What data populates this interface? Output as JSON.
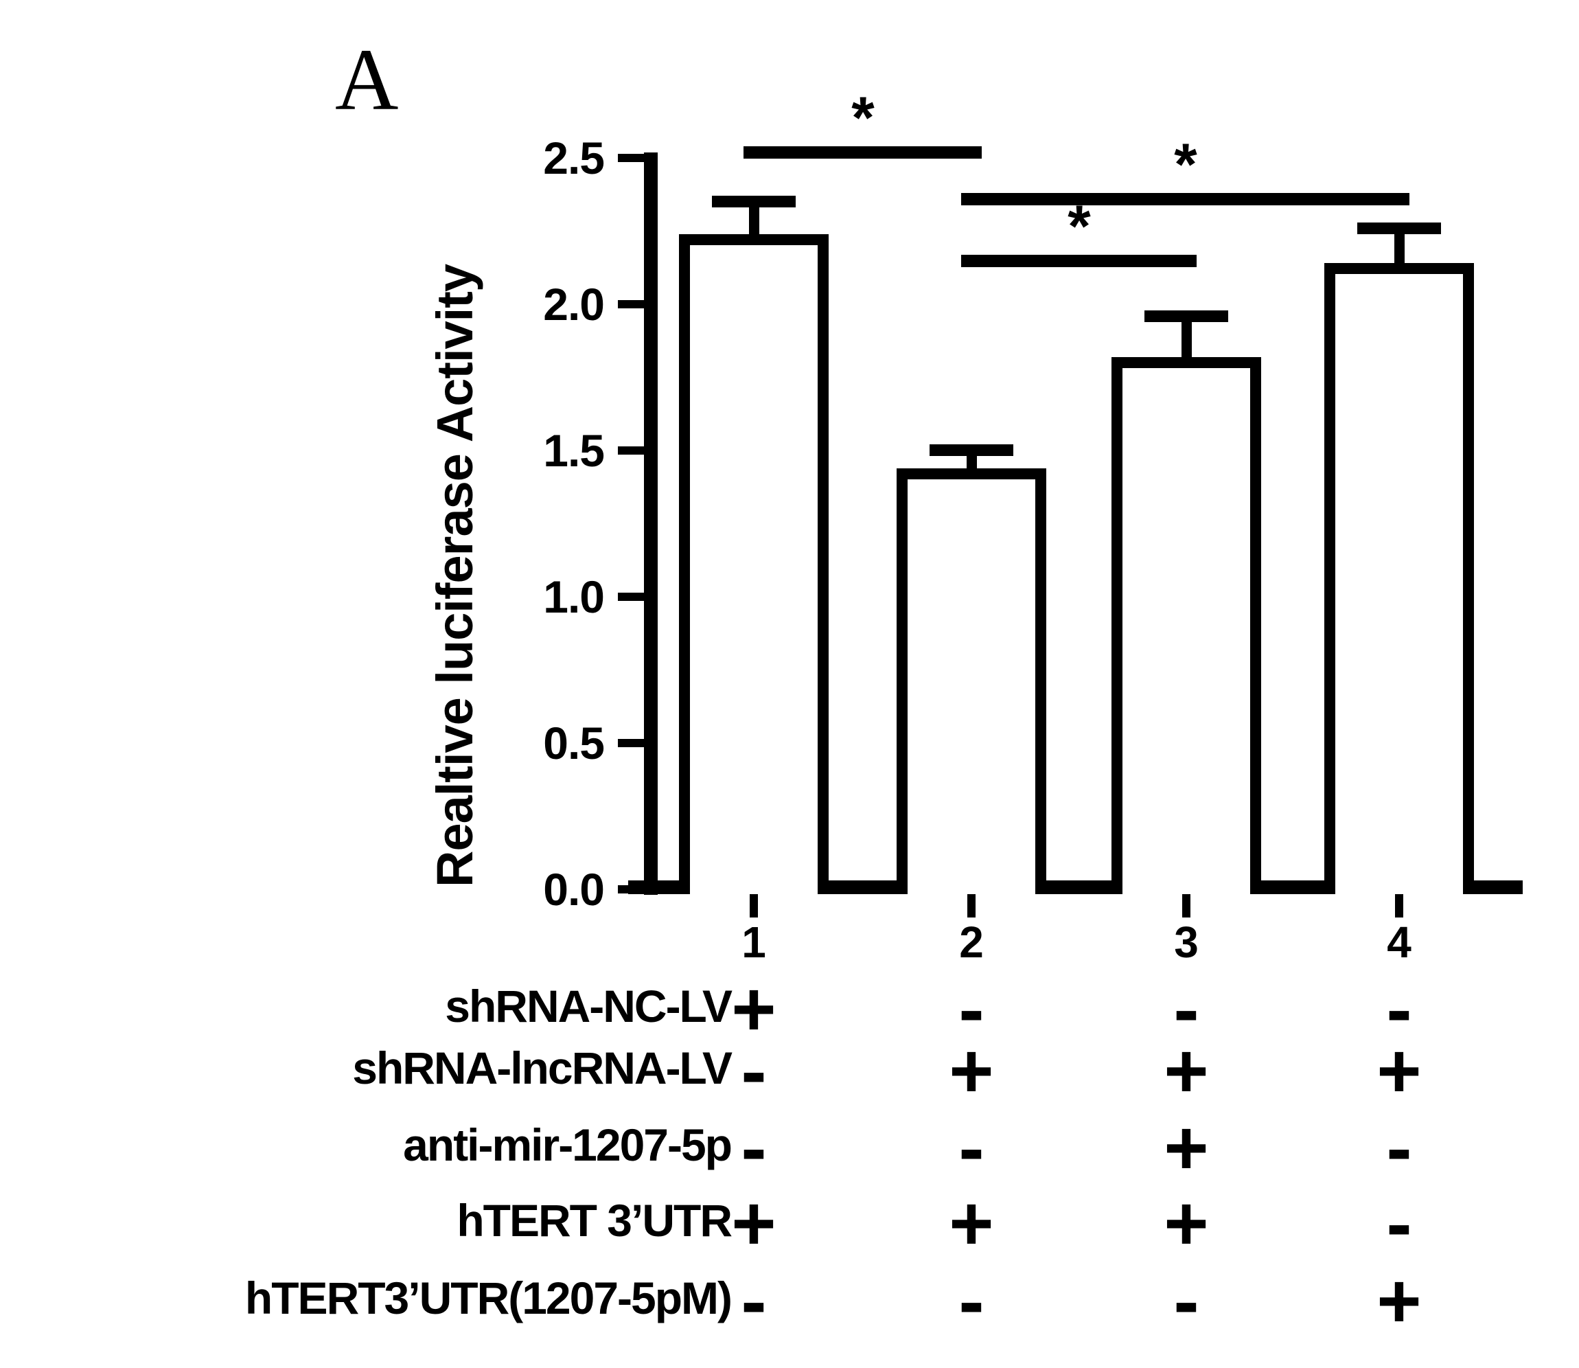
{
  "figure": {
    "panel_label": "A"
  },
  "chart_data": {
    "type": "bar",
    "title": "",
    "xlabel": "",
    "ylabel": "Realtive luciferase Activity",
    "categories": [
      "1",
      "2",
      "3",
      "4"
    ],
    "values": [
      2.24,
      1.44,
      1.82,
      2.14
    ],
    "errors": [
      0.13,
      0.08,
      0.16,
      0.14
    ],
    "ylim": [
      0,
      2.5
    ],
    "yticks": [
      0.0,
      0.5,
      1.0,
      1.5,
      2.0,
      2.5
    ],
    "ytick_labels": [
      "0.0",
      "0.5",
      "1.0",
      "1.5",
      "2.0",
      "2.5"
    ],
    "grid": "off",
    "legend": "none",
    "bar_fill": "#ffffff",
    "bar_border": "#000000",
    "significance": [
      {
        "groups": [
          1,
          2
        ],
        "label": "*",
        "line_value": 2.54
      },
      {
        "groups": [
          2,
          4
        ],
        "label": "*",
        "line_value": 2.38
      },
      {
        "groups": [
          2,
          3
        ],
        "label": "*",
        "line_value": 2.17
      }
    ]
  },
  "conditions": {
    "rows": [
      {
        "label": "shRNA-NC-LV",
        "signs": [
          "+",
          "-",
          "-",
          "-"
        ]
      },
      {
        "label": "shRNA-lncRNA-LV",
        "signs": [
          "-",
          "+",
          "+",
          "+"
        ]
      },
      {
        "label": "anti-mir-1207-5p",
        "signs": [
          "-",
          "-",
          "+",
          "-"
        ]
      },
      {
        "label": "hTERT 3’UTR",
        "signs": [
          "+",
          "+",
          "+",
          "-"
        ]
      },
      {
        "label": "hTERT3’UTR(1207-5pM)",
        "signs": [
          "-",
          "-",
          "-",
          "+"
        ]
      }
    ]
  }
}
